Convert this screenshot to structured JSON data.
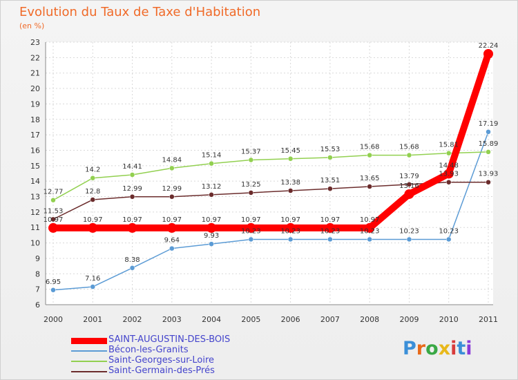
{
  "title": "Evolution du Taux de Taxe d'Habitation",
  "subtitle": "(en %)",
  "logo": {
    "letters": [
      "P",
      "r",
      "o",
      "x",
      "i",
      "t",
      "i"
    ],
    "colors": [
      "#3b8fd8",
      "#e86a1a",
      "#39a845",
      "#e8b81a",
      "#d83b3b",
      "#3b8fd8",
      "#8a3bd8"
    ]
  },
  "chart_data": {
    "type": "line",
    "x": [
      "2000",
      "2001",
      "2002",
      "2003",
      "2004",
      "2005",
      "2006",
      "2007",
      "2008",
      "2009",
      "2010",
      "2011"
    ],
    "ylim": [
      6,
      23
    ],
    "yticks": [
      6,
      7,
      8,
      9,
      10,
      11,
      12,
      13,
      14,
      15,
      16,
      17,
      18,
      19,
      20,
      21,
      22,
      23
    ],
    "grid": true,
    "series": [
      {
        "name": "SAINT-AUGUSTIN-DES-BOIS",
        "color": "#ff0000",
        "width": 10,
        "values": [
          10.97,
          10.97,
          10.97,
          10.97,
          10.97,
          10.97,
          10.97,
          10.97,
          10.97,
          13.16,
          14.48,
          22.24
        ],
        "labels": [
          "10.97",
          "10.97",
          "10.97",
          "10.97",
          "10.97",
          "10.97",
          "10.97",
          "10.97",
          "10.97",
          "13.16",
          "14.48",
          "22.24"
        ]
      },
      {
        "name": "Bécon-les-Granits",
        "color": "#5b9bd5",
        "width": 1.5,
        "values": [
          6.95,
          7.16,
          8.38,
          9.64,
          9.93,
          10.23,
          10.23,
          10.23,
          10.23,
          10.23,
          10.23,
          17.19
        ],
        "labels": [
          "6.95",
          "7.16",
          "8.38",
          "9.64",
          "9.93",
          "10.23",
          "10.23",
          "10.23",
          "10.23",
          "10.23",
          "10.23",
          "17.19"
        ]
      },
      {
        "name": "Saint-Georges-sur-Loire",
        "color": "#92d050",
        "width": 1.5,
        "values": [
          12.77,
          14.2,
          14.41,
          14.84,
          15.14,
          15.37,
          15.45,
          15.53,
          15.68,
          15.68,
          15.81,
          15.89
        ],
        "labels": [
          "12.77",
          "14.2",
          "14.41",
          "14.84",
          "15.14",
          "15.37",
          "15.45",
          "15.53",
          "15.68",
          "15.68",
          "15.81",
          "15.89"
        ]
      },
      {
        "name": "Saint-Germain-des-Prés",
        "color": "#6b2c2c",
        "width": 1.5,
        "values": [
          11.53,
          12.8,
          12.99,
          12.99,
          13.12,
          13.25,
          13.38,
          13.51,
          13.65,
          13.79,
          13.93,
          13.93
        ],
        "labels": [
          "11.53",
          "12.8",
          "12.99",
          "12.99",
          "13.12",
          "13.25",
          "13.38",
          "13.51",
          "13.65",
          "13.79",
          "13.93",
          "13.93"
        ]
      }
    ]
  }
}
